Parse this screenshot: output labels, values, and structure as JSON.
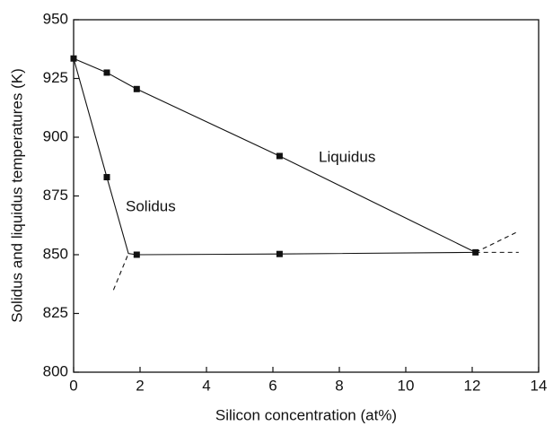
{
  "chart_data": {
    "type": "line",
    "xlabel": "Silicon concentration (at%)",
    "ylabel": "Solidus and liquidus temperatures (K)",
    "xlim": [
      0,
      14
    ],
    "xticks": [
      0,
      2,
      4,
      6,
      8,
      10,
      12,
      14
    ],
    "ylim": [
      800,
      950
    ],
    "yticks": [
      800,
      825,
      850,
      875,
      900,
      925,
      950
    ],
    "color": "#111111",
    "series": [
      {
        "name": "Liquidus",
        "x": [
          0,
          1,
          1.9,
          6.2,
          12.1
        ],
        "values": [
          933.5,
          927.5,
          920.5,
          892,
          851
        ],
        "marker": [
          true,
          true,
          true,
          true,
          true
        ],
        "dashed": false
      },
      {
        "name": "Solidus",
        "x": [
          0,
          1,
          1.65,
          1.9,
          6.2,
          12.1
        ],
        "values": [
          933.5,
          883,
          850.5,
          850,
          850.3,
          851
        ],
        "marker": [
          false,
          true,
          false,
          true,
          true,
          false
        ],
        "dashed": false
      },
      {
        "x": [
          1.2,
          1.65
        ],
        "values": [
          835,
          850.5
        ],
        "dashed": true
      },
      {
        "x": [
          12.1,
          13.4
        ],
        "values": [
          851,
          860
        ],
        "dashed": true
      },
      {
        "x": [
          12.1,
          13.4
        ],
        "values": [
          851,
          851
        ],
        "dashed": true
      }
    ]
  }
}
